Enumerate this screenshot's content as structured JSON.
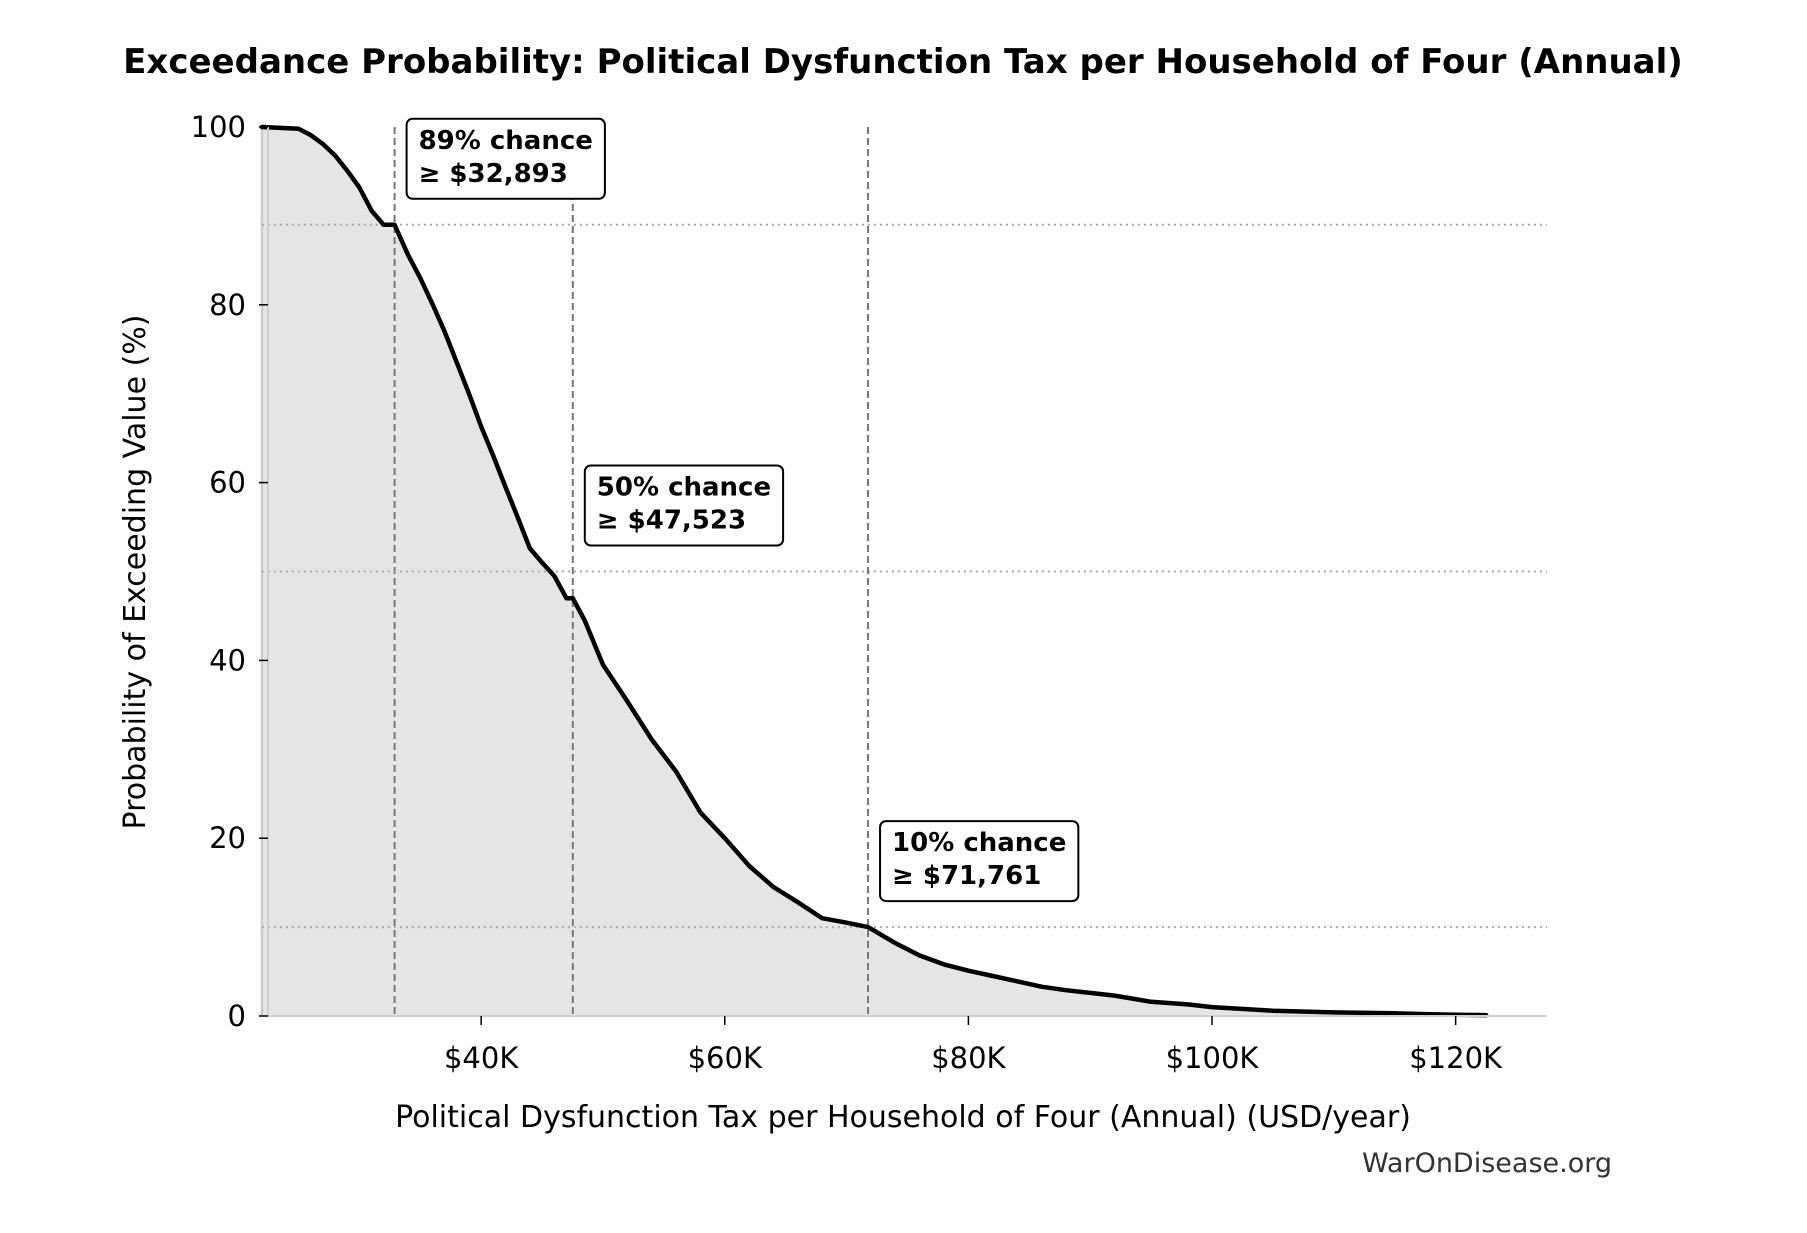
{
  "chart_data": {
    "type": "area",
    "title": "Exceedance Probability: Political Dysfunction Tax per Household of Four (Annual)",
    "xlabel": "Political Dysfunction Tax per Household of Four (Annual) (USD/year)",
    "ylabel": "Probability of Exceeding Value (%)",
    "xlim": [
      22500,
      127500
    ],
    "ylim": [
      0,
      100
    ],
    "x_ticks": [
      {
        "value": 40000,
        "label": "$40K"
      },
      {
        "value": 60000,
        "label": "$60K"
      },
      {
        "value": 80000,
        "label": "$80K"
      },
      {
        "value": 100000,
        "label": "$100K"
      },
      {
        "value": 120000,
        "label": "$120K"
      }
    ],
    "y_ticks": [
      {
        "value": 0,
        "label": "0"
      },
      {
        "value": 20,
        "label": "20"
      },
      {
        "value": 40,
        "label": "40"
      },
      {
        "value": 60,
        "label": "60"
      },
      {
        "value": 80,
        "label": "80"
      },
      {
        "value": 100,
        "label": "100"
      }
    ],
    "grid": false,
    "x": [
      22000,
      25000,
      26000,
      27000,
      28000,
      29000,
      30000,
      31000,
      32000,
      32893,
      34000,
      35000,
      36000,
      37000,
      38000,
      39000,
      40000,
      41000,
      42000,
      43000,
      44000,
      45000,
      46000,
      47000,
      47523,
      48500,
      50000,
      52000,
      54000,
      56000,
      58000,
      60000,
      62000,
      64000,
      66000,
      68000,
      70000,
      71761,
      74000,
      76000,
      78000,
      80000,
      82000,
      84000,
      86000,
      88000,
      90000,
      92000,
      95000,
      98000,
      100000,
      105000,
      110000,
      115000,
      118000,
      120000,
      122500
    ],
    "y": [
      100,
      99.8,
      99.1,
      98.1,
      96.8,
      95.1,
      93.2,
      90.6,
      89.0,
      89.0,
      85.6,
      83.0,
      80.1,
      77.0,
      73.5,
      70.0,
      66.3,
      63.0,
      59.5,
      56.1,
      52.6,
      51.0,
      49.5,
      47.0,
      50.0,
      44.5,
      39.5,
      35.4,
      31.1,
      27.5,
      22.9,
      20.0,
      16.9,
      14.5,
      12.8,
      11.0,
      10.5,
      10.0,
      8.2,
      6.8,
      5.8,
      5.1,
      4.5,
      3.9,
      3.3,
      2.9,
      2.6,
      2.3,
      1.6,
      1.3,
      1.0,
      0.6,
      0.4,
      0.3,
      0.2,
      0.15,
      0.1
    ],
    "line_color": "#000000",
    "fill_color": "#e5e5e5",
    "annotations": [
      {
        "x": 32893,
        "y": 89,
        "line1": "89% chance",
        "line2": "≥ $32,893"
      },
      {
        "x": 47523,
        "y": 50,
        "line1": "50% chance",
        "line2": "≥ $47,523"
      },
      {
        "x": 71761,
        "y": 10,
        "line1": "10% chance",
        "line2": "≥ $71,761"
      }
    ]
  },
  "footer": {
    "watermark": "WarOnDisease.org"
  }
}
